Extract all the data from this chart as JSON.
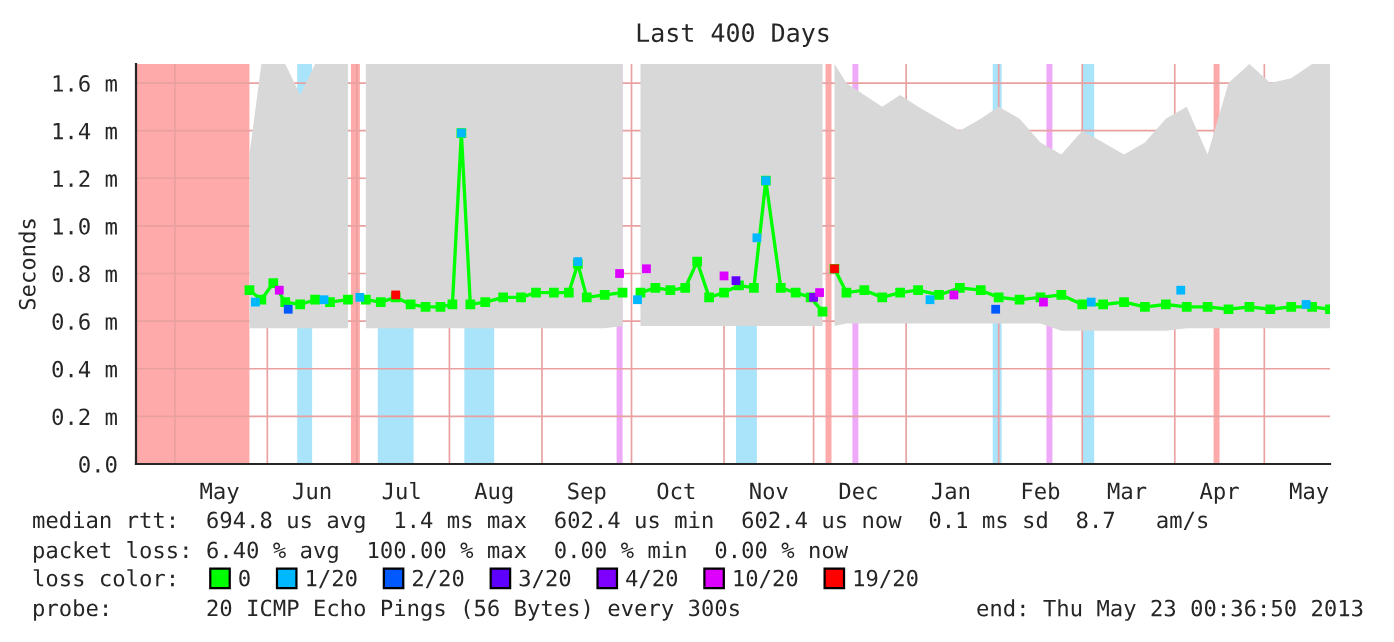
{
  "chart_data": {
    "type": "line",
    "title": "Last 400 Days",
    "ylabel": "Seconds",
    "legend_title": "loss color:",
    "x": [
      "2012-05-26",
      "2012-05-30",
      "2012-06-03",
      "2012-06-07",
      "2012-06-12",
      "2012-06-17",
      "2012-06-22",
      "2012-06-28",
      "2012-07-01",
      "2012-07-04",
      "2012-07-09",
      "2012-07-14",
      "2012-07-19",
      "2012-07-24",
      "2012-07-29",
      "2012-08-02",
      "2012-08-05",
      "2012-08-08",
      "2012-08-13",
      "2012-08-19",
      "2012-08-25",
      "2012-08-30",
      "2012-09-05",
      "2012-09-10",
      "2012-09-13",
      "2012-09-16",
      "2012-09-22",
      "2012-09-28",
      "2012-10-01",
      "2012-10-04",
      "2012-10-09",
      "2012-10-14",
      "2012-10-19",
      "2012-10-23",
      "2012-10-27",
      "2012-11-01",
      "2012-11-06",
      "2012-11-11",
      "2012-11-15",
      "2012-11-20",
      "2012-11-25",
      "2012-11-30",
      "2012-12-04",
      "2012-12-06",
      "2012-12-08",
      "2012-12-12",
      "2012-12-18",
      "2012-12-24",
      "2012-12-30",
      "2013-01-05",
      "2013-01-12",
      "2013-01-19",
      "2013-01-26",
      "2013-02-01",
      "2013-02-08",
      "2013-02-15",
      "2013-02-22",
      "2013-03-01",
      "2013-03-08",
      "2013-03-15",
      "2013-03-22",
      "2013-03-29",
      "2013-04-05",
      "2013-04-12",
      "2013-04-19",
      "2013-04-26",
      "2013-05-03",
      "2013-05-10",
      "2013-05-17",
      "2013-05-23"
    ],
    "series": [
      {
        "name": "0",
        "color": "#00ff00",
        "values": [
          0.73,
          0.69,
          0.76,
          0.68,
          0.67,
          0.69,
          0.68,
          0.69,
          null,
          0.69,
          0.68,
          0.7,
          0.67,
          0.66,
          0.66,
          0.67,
          1.39,
          0.67,
          0.68,
          0.7,
          0.7,
          0.72,
          0.72,
          0.72,
          0.84,
          0.7,
          0.71,
          0.72,
          null,
          0.72,
          0.74,
          0.73,
          0.74,
          0.85,
          0.7,
          0.72,
          0.75,
          0.74,
          1.19,
          0.74,
          0.72,
          0.7,
          0.64,
          null,
          0.82,
          0.72,
          0.73,
          0.7,
          0.72,
          0.73,
          0.71,
          0.74,
          0.73,
          0.7,
          0.69,
          0.7,
          0.71,
          0.67,
          0.67,
          0.68,
          0.66,
          0.67,
          0.66,
          0.66,
          0.65,
          0.66,
          0.65,
          0.66,
          0.66,
          0.65
        ],
        "lower": [
          0.57,
          0.57,
          0.57,
          0.57,
          0.57,
          0.57,
          0.57,
          0.57,
          null,
          0.57,
          0.57,
          0.57,
          0.57,
          0.57,
          0.57,
          0.57,
          0.57,
          0.57,
          0.57,
          0.57,
          0.57,
          0.57,
          0.57,
          0.57,
          0.57,
          0.57,
          0.57,
          0.58,
          null,
          0.58,
          0.58,
          0.58,
          0.58,
          0.58,
          0.58,
          0.58,
          0.58,
          0.58,
          0.58,
          0.58,
          0.58,
          0.58,
          0.58,
          null,
          0.58,
          0.59,
          0.59,
          0.59,
          0.59,
          0.59,
          0.59,
          0.59,
          0.59,
          0.59,
          0.59,
          0.59,
          0.56,
          0.56,
          0.56,
          0.56,
          0.56,
          0.56,
          0.57,
          0.57,
          0.57,
          0.57,
          0.57,
          0.57,
          0.57,
          0.57
        ],
        "upper": [
          1.3,
          1.68,
          1.68,
          1.68,
          1.55,
          1.68,
          1.68,
          1.68,
          null,
          1.68,
          1.68,
          1.68,
          1.68,
          1.68,
          1.68,
          1.68,
          1.68,
          1.68,
          1.68,
          1.68,
          1.68,
          1.68,
          1.68,
          1.68,
          1.68,
          1.68,
          1.68,
          1.68,
          null,
          1.68,
          1.68,
          1.68,
          1.68,
          1.68,
          1.68,
          1.68,
          1.68,
          1.68,
          1.68,
          1.68,
          1.68,
          1.68,
          1.68,
          null,
          1.68,
          1.6,
          1.55,
          1.5,
          1.55,
          1.5,
          1.45,
          1.4,
          1.45,
          1.5,
          1.45,
          1.35,
          1.3,
          1.4,
          1.35,
          1.3,
          1.35,
          1.45,
          1.5,
          1.3,
          1.6,
          1.68,
          1.6,
          1.62,
          1.68,
          1.68
        ]
      },
      {
        "name": "1/20",
        "color": "#00b8ff",
        "type": "scatter",
        "x": [
          "2012-05-28",
          "2012-06-20",
          "2012-07-02",
          "2012-08-05",
          "2012-09-13",
          "2012-10-03",
          "2012-11-12",
          "2012-11-15",
          "2013-01-09",
          "2013-03-04",
          "2013-04-03",
          "2013-05-15"
        ],
        "values": [
          0.68,
          0.69,
          0.7,
          1.39,
          0.85,
          0.69,
          0.95,
          1.19,
          0.69,
          0.68,
          0.73,
          0.67
        ]
      },
      {
        "name": "2/20",
        "color": "#0059ff",
        "type": "scatter",
        "x": [
          "2012-06-08",
          "2013-01-31"
        ],
        "values": [
          0.65,
          0.65
        ]
      },
      {
        "name": "3/20",
        "color": "#5e00ff",
        "type": "scatter",
        "x": [
          "2012-11-05"
        ],
        "values": [
          0.77
        ]
      },
      {
        "name": "4/20",
        "color": "#7e00ff",
        "type": "scatter",
        "x": [
          "2012-12-01"
        ],
        "values": [
          0.7
        ]
      },
      {
        "name": "10/20",
        "color": "#dd00ff",
        "type": "scatter",
        "x": [
          "2012-06-05",
          "2012-09-27",
          "2012-10-06",
          "2012-11-01",
          "2012-12-03",
          "2013-01-17",
          "2013-02-16"
        ],
        "values": [
          0.73,
          0.8,
          0.82,
          0.79,
          0.72,
          0.71,
          0.68
        ]
      },
      {
        "name": "19/20",
        "color": "#ff0000",
        "type": "scatter",
        "x": [
          "2012-07-14",
          "2012-12-08"
        ],
        "values": [
          0.71,
          0.82
        ]
      }
    ],
    "bands": [
      {
        "axis": "x",
        "from": "2012-04-18",
        "to": "2012-05-26",
        "color": "#ffaaaa"
      },
      {
        "axis": "x",
        "from": "2012-06-29",
        "to": "2012-07-02",
        "color": "#ffaaaa"
      },
      {
        "axis": "x",
        "from": "2012-12-05",
        "to": "2012-12-07",
        "color": "#ffaaaa"
      },
      {
        "axis": "x",
        "from": "2013-04-14",
        "to": "2013-04-16",
        "color": "#ffaaaa"
      },
      {
        "axis": "x",
        "from": "2012-06-11",
        "to": "2012-06-16",
        "color": "#aae4fa"
      },
      {
        "axis": "x",
        "from": "2012-07-08",
        "to": "2012-07-20",
        "color": "#aae4fa"
      },
      {
        "axis": "x",
        "from": "2012-08-06",
        "to": "2012-08-16",
        "color": "#aae4fa"
      },
      {
        "axis": "x",
        "from": "2012-11-05",
        "to": "2012-11-12",
        "color": "#aae4fa"
      },
      {
        "axis": "x",
        "from": "2013-01-30",
        "to": "2013-02-02",
        "color": "#aae4fa"
      },
      {
        "axis": "x",
        "from": "2013-03-01",
        "to": "2013-03-05",
        "color": "#aae4fa"
      },
      {
        "axis": "x",
        "from": "2012-09-26",
        "to": "2012-09-28",
        "color": "#eeaaf8"
      },
      {
        "axis": "x",
        "from": "2012-12-14",
        "to": "2012-12-16",
        "color": "#eeaaf8"
      },
      {
        "axis": "x",
        "from": "2013-02-17",
        "to": "2013-02-19",
        "color": "#eeaaf8"
      }
    ],
    "xlim": [
      "2012-04-18",
      "2013-05-23"
    ],
    "xticks": [
      {
        "value": "2012-05-01",
        "label": null
      },
      {
        "value": "2012-05-16",
        "label": "May"
      },
      {
        "value": "2012-06-01",
        "label": null
      },
      {
        "value": "2012-06-16",
        "label": "Jun"
      },
      {
        "value": "2012-07-01",
        "label": null
      },
      {
        "value": "2012-07-16",
        "label": "Jul"
      },
      {
        "value": "2012-08-01",
        "label": null
      },
      {
        "value": "2012-08-16",
        "label": "Aug"
      },
      {
        "value": "2012-09-01",
        "label": null
      },
      {
        "value": "2012-09-16",
        "label": "Sep"
      },
      {
        "value": "2012-10-01",
        "label": null
      },
      {
        "value": "2012-10-16",
        "label": "Oct"
      },
      {
        "value": "2012-11-01",
        "label": null
      },
      {
        "value": "2012-11-16",
        "label": "Nov"
      },
      {
        "value": "2012-12-01",
        "label": null
      },
      {
        "value": "2012-12-16",
        "label": "Dec"
      },
      {
        "value": "2013-01-01",
        "label": null
      },
      {
        "value": "2013-01-16",
        "label": "Jan"
      },
      {
        "value": "2013-02-01",
        "label": null
      },
      {
        "value": "2013-02-15",
        "label": "Feb"
      },
      {
        "value": "2013-03-01",
        "label": null
      },
      {
        "value": "2013-03-16",
        "label": "Mar"
      },
      {
        "value": "2013-04-01",
        "label": null
      },
      {
        "value": "2013-04-16",
        "label": "Apr"
      },
      {
        "value": "2013-05-01",
        "label": null
      },
      {
        "value": "2013-05-16",
        "label": "May"
      }
    ],
    "ylim": [
      0,
      1.68
    ],
    "yticks": [
      {
        "value": 0,
        "label": "0.0"
      },
      {
        "value": 0.2,
        "label": "0.2 m"
      },
      {
        "value": 0.4,
        "label": "0.4 m"
      },
      {
        "value": 0.6,
        "label": "0.6 m"
      },
      {
        "value": 0.8,
        "label": "0.8 m"
      },
      {
        "value": 1.0,
        "label": "1.0 m"
      },
      {
        "value": 1.2,
        "label": "1.2 m"
      },
      {
        "value": 1.4,
        "label": "1.4 m"
      },
      {
        "value": 1.6,
        "label": "1.6 m"
      }
    ],
    "grid": true,
    "legend": "bottom",
    "marker": "square",
    "annotations": [
      "median rtt:  694.8 us avg  1.4 ms max  602.4 us min  602.4 us now  0.1 ms sd  8.7   am/s",
      "packet loss: 6.40 % avg  100.00 % max  0.00 % min  0.00 % now",
      "probe:       20 ICMP Echo Pings (56 Bytes) every 300s",
      "end: Thu May 23 00:36:50 2013"
    ]
  }
}
